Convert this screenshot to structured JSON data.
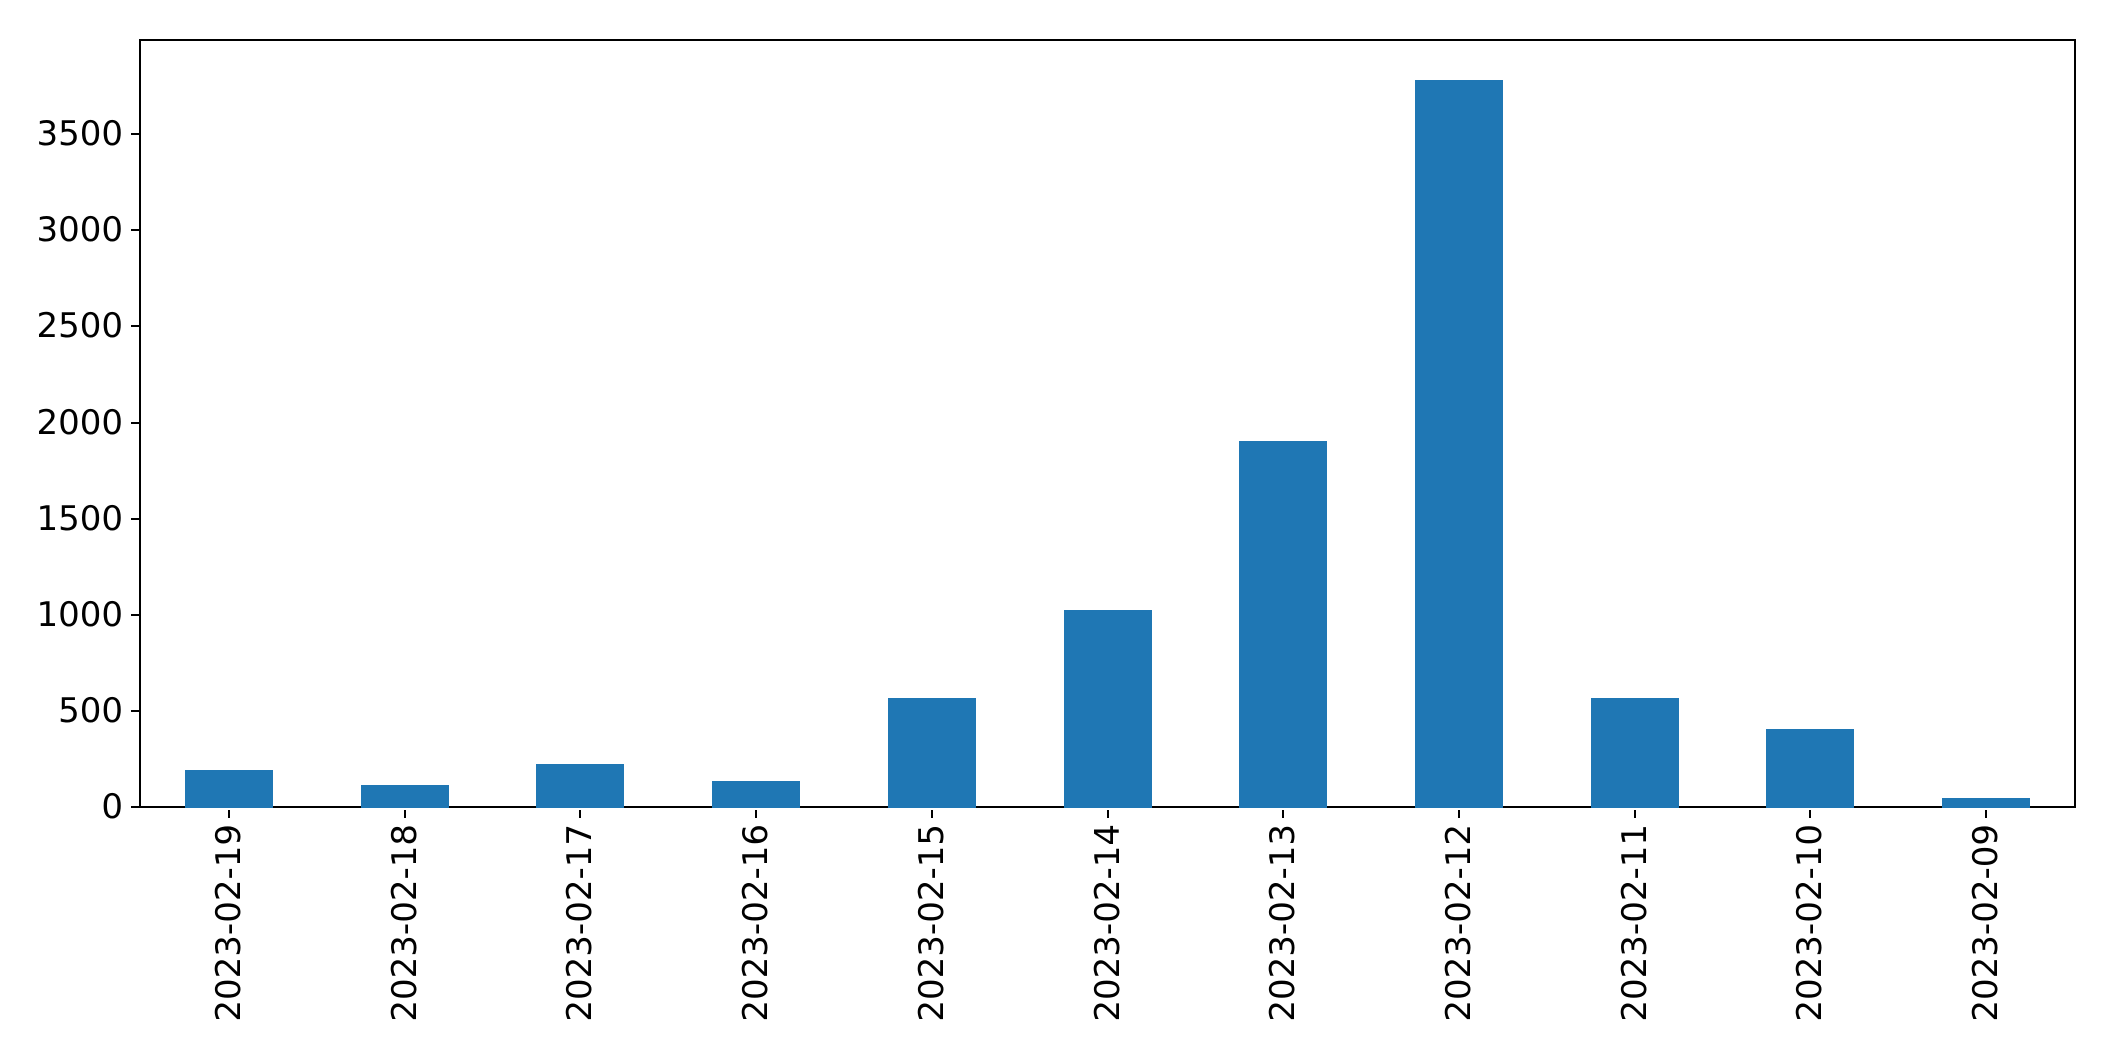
{
  "chart_data": {
    "type": "bar",
    "title": "",
    "xlabel": "",
    "ylabel": "",
    "categories": [
      "2023-02-19",
      "2023-02-18",
      "2023-02-17",
      "2023-02-16",
      "2023-02-15",
      "2023-02-14",
      "2023-02-13",
      "2023-02-12",
      "2023-02-11",
      "2023-02-10",
      "2023-02-09"
    ],
    "values": [
      200,
      120,
      230,
      140,
      570,
      1030,
      1910,
      3790,
      570,
      410,
      50
    ],
    "y_ticks": [
      0,
      500,
      1000,
      1500,
      2000,
      2500,
      3000,
      3500
    ],
    "ylim": [
      0,
      3980
    ],
    "grid": false,
    "legend": "none",
    "bar_color": "#1f77b4",
    "axis_color": "#000000",
    "background_color": "#ffffff"
  }
}
